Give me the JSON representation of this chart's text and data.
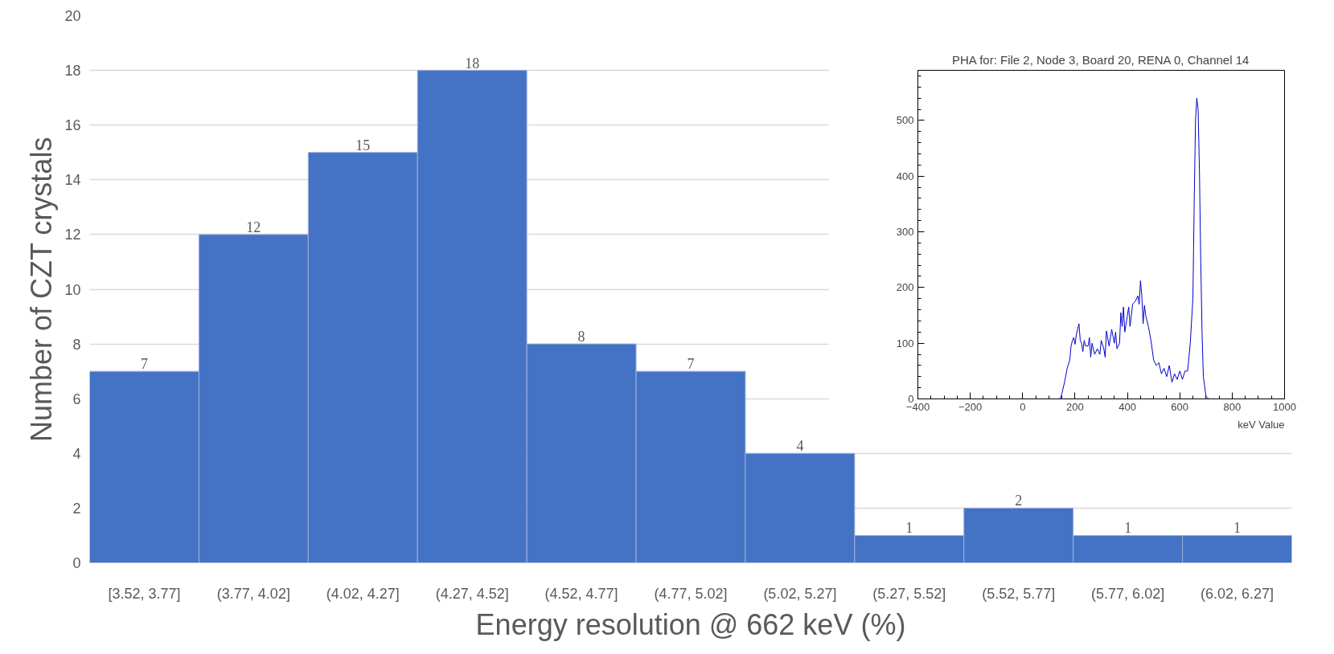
{
  "chart_data": [
    {
      "type": "bar",
      "xlabel": "Energy resolution @ 662 keV (%)",
      "ylabel": "Number of CZT crystals",
      "categories": [
        "[3.52, 3.77]",
        "(3.77, 4.02]",
        "(4.02, 4.27]",
        "(4.27, 4.52]",
        "(4.52, 4.77]",
        "(4.77, 5.02]",
        "(5.02, 5.27]",
        "(5.27, 5.52]",
        "(5.52, 5.77]",
        "(5.77, 6.02]",
        "(6.02, 6.27]"
      ],
      "values": [
        7,
        12,
        15,
        18,
        8,
        7,
        4,
        1,
        2,
        1,
        1
      ],
      "color": "#4472c4",
      "ylim": [
        0,
        20
      ],
      "yticks": [
        0,
        2,
        4,
        6,
        8,
        10,
        12,
        14,
        16,
        18,
        20
      ],
      "grid": "y",
      "data_labels": true
    },
    {
      "type": "line",
      "title": "PHA for: File 2, Node 3, Board 20, RENA 0, Channel 14",
      "xlabel": "keV Value",
      "x": [
        -400,
        140,
        145,
        150,
        160,
        170,
        180,
        185,
        190,
        195,
        200,
        205,
        210,
        215,
        220,
        225,
        230,
        235,
        240,
        250,
        255,
        260,
        265,
        275,
        285,
        295,
        300,
        310,
        315,
        320,
        330,
        340,
        350,
        355,
        360,
        370,
        375,
        380,
        385,
        390,
        400,
        405,
        410,
        420,
        430,
        440,
        445,
        450,
        455,
        460,
        465,
        470,
        480,
        490,
        500,
        510,
        520,
        530,
        540,
        550,
        560,
        570,
        580,
        590,
        600,
        610,
        620,
        630,
        640,
        650,
        655,
        660,
        665,
        670,
        675,
        680,
        685,
        690,
        700,
        710,
        1000
      ],
      "series": [
        {
          "color": "#0000cc",
          "values": [
            0,
            0,
            2,
            10,
            30,
            55,
            70,
            95,
            105,
            110,
            98,
            115,
            125,
            135,
            105,
            100,
            85,
            105,
            95,
            95,
            110,
            75,
            100,
            80,
            90,
            80,
            105,
            90,
            75,
            122,
            95,
            125,
            100,
            120,
            90,
            100,
            155,
            130,
            165,
            120,
            150,
            165,
            130,
            170,
            175,
            185,
            170,
            212,
            185,
            135,
            168,
            150,
            130,
            105,
            70,
            60,
            65,
            45,
            55,
            40,
            60,
            30,
            45,
            35,
            50,
            35,
            50,
            50,
            100,
            180,
            350,
            500,
            540,
            520,
            410,
            250,
            120,
            40,
            5,
            0,
            0
          ]
        }
      ],
      "xlim": [
        -400,
        1000
      ],
      "ylim": [
        0,
        590
      ],
      "xticks": [
        -400,
        -200,
        0,
        200,
        400,
        600,
        800,
        1000
      ],
      "yticks": [
        0,
        100,
        200,
        300,
        400,
        500
      ],
      "grid": false
    }
  ]
}
